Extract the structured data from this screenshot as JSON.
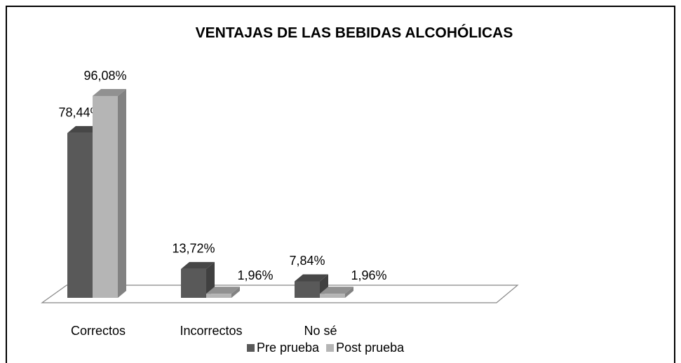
{
  "chart_data": {
    "type": "bar3d",
    "title": "VENTAJAS DE LAS BEBIDAS ALCOHÓLICAS",
    "categories": [
      "Correctos",
      "Incorrectos",
      "No sé"
    ],
    "series": [
      {
        "name": "Pre prueba",
        "color": "#595959",
        "values": [
          78.44,
          13.72,
          7.84
        ],
        "value_labels": [
          "78,44%",
          "13,72%",
          "7,84%"
        ]
      },
      {
        "name": "Post prueba",
        "color": "#b5b5b5",
        "values": [
          96.08,
          1.96,
          1.96
        ],
        "value_labels": [
          "96,08%",
          "1,96%",
          "1,96%"
        ]
      }
    ],
    "legend": "bottom"
  }
}
